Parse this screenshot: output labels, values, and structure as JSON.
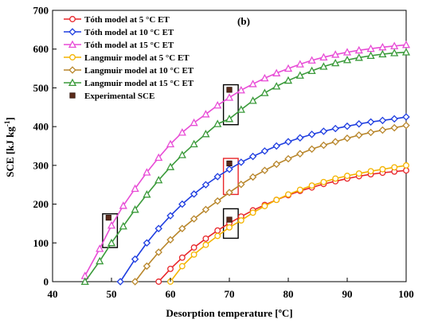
{
  "chart_data": {
    "type": "line",
    "panel_label": "(b)",
    "xlabel": "Desorption temperature [ºC]",
    "ylabel_main": "SCE [kJ kg",
    "ylabel_sup": "-1",
    "ylabel_end": "]",
    "xlim": [
      40,
      100
    ],
    "ylim": [
      0,
      700
    ],
    "xticks": [
      40,
      50,
      60,
      70,
      80,
      90,
      100
    ],
    "yticks": [
      0,
      100,
      200,
      300,
      400,
      500,
      600,
      700
    ],
    "grid": false,
    "legend_position": "top-left",
    "series": [
      {
        "name": "Tóth model at 5 °C ET",
        "color": "#e8262a",
        "marker": "circle",
        "x": [
          58,
          60,
          62,
          64,
          66,
          68,
          70,
          72,
          74,
          76,
          78,
          80,
          82,
          84,
          86,
          88,
          90,
          92,
          94,
          96,
          98,
          100
        ],
        "y": [
          0,
          33,
          62,
          88,
          111,
          132,
          151,
          168,
          184,
          198,
          211,
          223,
          234,
          243,
          252,
          259,
          266,
          272,
          277,
          281,
          284,
          287
        ]
      },
      {
        "name": "Tóth model at 10 °C ET",
        "color": "#1f3ee0",
        "marker": "diamond",
        "x": [
          51.5,
          54,
          56,
          58,
          60,
          62,
          64,
          66,
          68,
          70,
          72,
          74,
          76,
          78,
          80,
          82,
          84,
          86,
          88,
          90,
          92,
          94,
          96,
          98,
          100
        ],
        "y": [
          0,
          58,
          100,
          137,
          170,
          200,
          226,
          250,
          271,
          290,
          308,
          323,
          337,
          350,
          361,
          371,
          380,
          388,
          395,
          401,
          407,
          412,
          416,
          420,
          425
        ]
      },
      {
        "name": "Tóth model at 15 °C ET",
        "color": "#e84cd6",
        "marker": "triangle",
        "x": [
          45.5,
          48,
          50,
          52,
          54,
          56,
          58,
          60,
          62,
          64,
          66,
          68,
          70,
          72,
          74,
          76,
          78,
          80,
          82,
          84,
          86,
          88,
          90,
          92,
          94,
          96,
          98,
          100
        ],
        "y": [
          15,
          85,
          145,
          196,
          240,
          282,
          320,
          355,
          385,
          410,
          432,
          455,
          475,
          494,
          510,
          525,
          538,
          550,
          561,
          571,
          579,
          586,
          592,
          597,
          601,
          605,
          608,
          611
        ]
      },
      {
        "name": "Langmuir model at 5 °C ET",
        "color": "#f4b400",
        "marker": "circle",
        "x": [
          60,
          62,
          64,
          66,
          68,
          70,
          72,
          74,
          76,
          78,
          80,
          82,
          84,
          86,
          88,
          90,
          92,
          94,
          96,
          98,
          100
        ],
        "y": [
          0,
          40,
          70,
          95,
          118,
          140,
          158,
          178,
          195,
          211,
          225,
          237,
          248,
          257,
          266,
          273,
          279,
          285,
          290,
          295,
          300
        ]
      },
      {
        "name": "Langmuir model at 10 °C ET",
        "color": "#b8862b",
        "marker": "diamond",
        "x": [
          54,
          56,
          58,
          60,
          62,
          64,
          66,
          68,
          70,
          72,
          74,
          76,
          78,
          80,
          82,
          84,
          86,
          88,
          90,
          92,
          94,
          96,
          98,
          100
        ],
        "y": [
          0,
          40,
          76,
          108,
          137,
          162,
          186,
          208,
          230,
          251,
          270,
          287,
          303,
          317,
          330,
          342,
          352,
          361,
          370,
          378,
          385,
          391,
          397,
          403
        ]
      },
      {
        "name": "Langmuir model at 15 °C ET",
        "color": "#3a9a3a",
        "marker": "triangle",
        "x": [
          45.5,
          48,
          50,
          52,
          54,
          56,
          58,
          60,
          62,
          64,
          66,
          68,
          70,
          72,
          74,
          76,
          78,
          80,
          82,
          84,
          86,
          88,
          90,
          92,
          94,
          96,
          98,
          100
        ],
        "y": [
          0,
          53,
          100,
          143,
          186,
          225,
          262,
          296,
          327,
          355,
          381,
          407,
          420,
          444,
          467,
          487,
          504,
          519,
          532,
          544,
          555,
          564,
          572,
          578,
          583,
          587,
          590,
          592
        ]
      }
    ],
    "experimental": {
      "name": "Experimental SCE",
      "color": "#5b2a1a",
      "marker": "square",
      "x": [
        49.5,
        70,
        70,
        70
      ],
      "y": [
        165,
        495,
        305,
        160
      ]
    },
    "highlight_boxes": [
      {
        "x": [
          48.5,
          51
        ],
        "y": [
          88,
          175
        ],
        "color": "#000000"
      },
      {
        "x": [
          69,
          71.5
        ],
        "y": [
          405,
          508
        ],
        "color": "#000000"
      },
      {
        "x": [
          69,
          71.5
        ],
        "y": [
          225,
          318
        ],
        "color": "#e8262a"
      },
      {
        "x": [
          69,
          71.5
        ],
        "y": [
          112,
          188
        ],
        "color": "#000000"
      }
    ]
  }
}
